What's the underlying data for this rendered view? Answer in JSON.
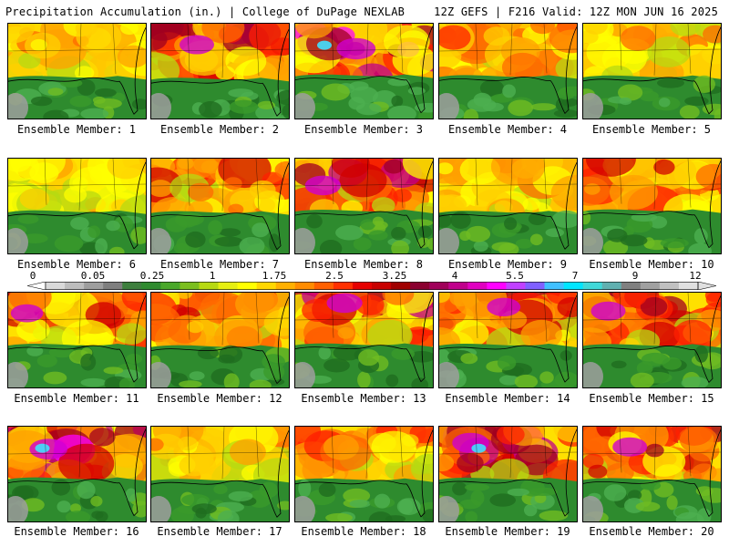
{
  "header": {
    "left": "Precipitation Accumulation (in.) | College of DuPage NEXLAB",
    "right": "12Z GEFS | F216 Valid: 12Z MON JUN 16 2025"
  },
  "caption_prefix": "Ensemble Member: ",
  "members": [
    {
      "label": "Ensemble Member: 1",
      "intensity": 0.45,
      "north_bias": 0.35
    },
    {
      "label": "Ensemble Member: 2",
      "intensity": 0.75,
      "north_bias": 0.1
    },
    {
      "label": "Ensemble Member: 3",
      "intensity": 0.95,
      "north_bias": 0.55
    },
    {
      "label": "Ensemble Member: 4",
      "intensity": 0.55,
      "north_bias": 0.45
    },
    {
      "label": "Ensemble Member: 5",
      "intensity": 0.4,
      "north_bias": 0.4
    },
    {
      "label": "Ensemble Member: 6",
      "intensity": 0.35,
      "north_bias": 0.4
    },
    {
      "label": "Ensemble Member: 7",
      "intensity": 0.55,
      "north_bias": 0.3
    },
    {
      "label": "Ensemble Member: 8",
      "intensity": 0.8,
      "north_bias": 0.5
    },
    {
      "label": "Ensemble Member: 9",
      "intensity": 0.45,
      "north_bias": 0.35
    },
    {
      "label": "Ensemble Member: 10",
      "intensity": 0.6,
      "north_bias": 0.55
    },
    {
      "label": "Ensemble Member: 11",
      "intensity": 0.65,
      "north_bias": 0.5
    },
    {
      "label": "Ensemble Member: 12",
      "intensity": 0.6,
      "north_bias": 0.3
    },
    {
      "label": "Ensemble Member: 13",
      "intensity": 0.8,
      "north_bias": 0.55
    },
    {
      "label": "Ensemble Member: 14",
      "intensity": 0.7,
      "north_bias": 0.5
    },
    {
      "label": "Ensemble Member: 15",
      "intensity": 0.75,
      "north_bias": 0.45
    },
    {
      "label": "Ensemble Member: 16",
      "intensity": 0.9,
      "north_bias": 0.55
    },
    {
      "label": "Ensemble Member: 17",
      "intensity": 0.45,
      "north_bias": 0.35
    },
    {
      "label": "Ensemble Member: 18",
      "intensity": 0.5,
      "north_bias": 0.4
    },
    {
      "label": "Ensemble Member: 19",
      "intensity": 0.85,
      "north_bias": 0.5
    },
    {
      "label": "Ensemble Member: 20",
      "intensity": 0.75,
      "north_bias": 0.45
    }
  ],
  "colorbar": {
    "ticks": [
      "0",
      "0.05",
      "0.25",
      "1",
      "1.75",
      "2.5",
      "3.25",
      "4",
      "5.5",
      "7",
      "9",
      "12"
    ],
    "colors": [
      "#d9d9d9",
      "#bdbdbd",
      "#9e9e9e",
      "#7f7f7f",
      "#3d7f3d",
      "#2e8b2e",
      "#4aa82a",
      "#7bbf1e",
      "#b7d911",
      "#e6ef10",
      "#ffff00",
      "#ffd700",
      "#ffb000",
      "#ff8c00",
      "#ff6000",
      "#ff3000",
      "#e60000",
      "#c80000",
      "#a00000",
      "#8b0030",
      "#a0005a",
      "#c0008c",
      "#e000c0",
      "#ff00ff",
      "#c040ff",
      "#8060ff",
      "#40c0ff",
      "#00e6ff",
      "#40d8d8",
      "#60b0b0",
      "#808080",
      "#a0a0a0",
      "#c0c0c0",
      "#e0e0e0"
    ]
  }
}
